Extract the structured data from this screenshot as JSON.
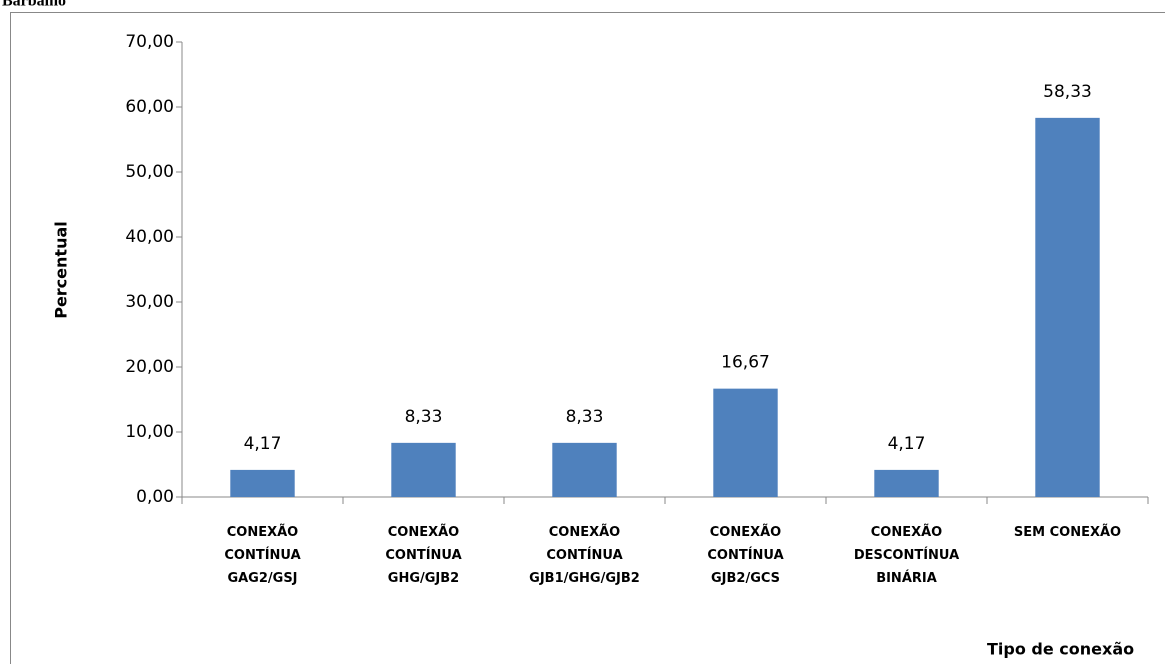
{
  "caption": "Barbalho",
  "chart_data": {
    "type": "bar",
    "categories": [
      "CONEXÃO\nCONTÍNUA\nGAG2/GSJ",
      "CONEXÃO\nCONTÍNUA\nGHG/GJB2",
      "CONEXÃO\nCONTÍNUA\nGJB1/GHG/GJB2",
      "CONEXÃO\nCONTÍNUA\nGJB2/GCS",
      "CONEXÃO\nDESCONTÍNUA\nBINÁRIA",
      "SEM CONEXÃO"
    ],
    "values": [
      4.17,
      8.33,
      8.33,
      16.67,
      4.17,
      58.33
    ],
    "value_labels": [
      "4,17",
      "8,33",
      "8,33",
      "16,67",
      "4,17",
      "58,33"
    ],
    "color": "#4f81bd",
    "ylim": [
      0,
      70
    ],
    "yticks": [
      {
        "value": 0,
        "label": "0,00"
      },
      {
        "value": 10,
        "label": "10,00"
      },
      {
        "value": 20,
        "label": "20,00"
      },
      {
        "value": 30,
        "label": "30,00"
      },
      {
        "value": 40,
        "label": "40,00"
      },
      {
        "value": 50,
        "label": "50,00"
      },
      {
        "value": 60,
        "label": "60,00"
      },
      {
        "value": 70,
        "label": "70,00"
      }
    ],
    "ylabel": "Percentual",
    "xlabel": "Tipo de conexão",
    "grid": false
  }
}
